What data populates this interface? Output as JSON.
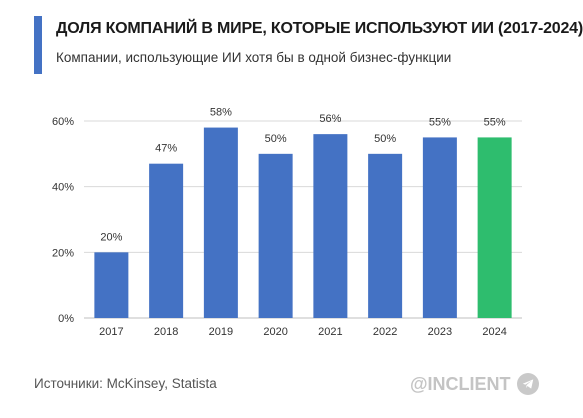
{
  "header": {
    "title": "ДОЛЯ КОМПАНИЙ В МИРЕ, КОТОРЫЕ ИСПОЛЬЗУЮТ ИИ (2017-2024)",
    "subtitle": "Компании, использующие ИИ хотя бы в одной бизнес-функции"
  },
  "footer": {
    "source": "Источники: McKinsey, Statista",
    "brand": "@INCLIENT",
    "brand_icon": "telegram-icon"
  },
  "colors": {
    "accent": "#4472c4",
    "bar": "#4472c4",
    "highlight": "#2ebd6e",
    "grid": "#d9d9d9"
  },
  "chart_data": {
    "type": "bar",
    "categories": [
      "2017",
      "2018",
      "2019",
      "2020",
      "2021",
      "2022",
      "2023",
      "2024"
    ],
    "values": [
      20,
      47,
      58,
      50,
      56,
      50,
      55,
      55
    ],
    "value_labels": [
      "20%",
      "47%",
      "58%",
      "50%",
      "56%",
      "50%",
      "55%",
      "55%"
    ],
    "highlighted_category": "2024",
    "yticks": [
      0,
      20,
      40,
      60
    ],
    "ytick_labels": [
      "0%",
      "20%",
      "40%",
      "60%"
    ],
    "ylim": [
      0,
      60
    ],
    "grid": true,
    "legend": "none"
  }
}
